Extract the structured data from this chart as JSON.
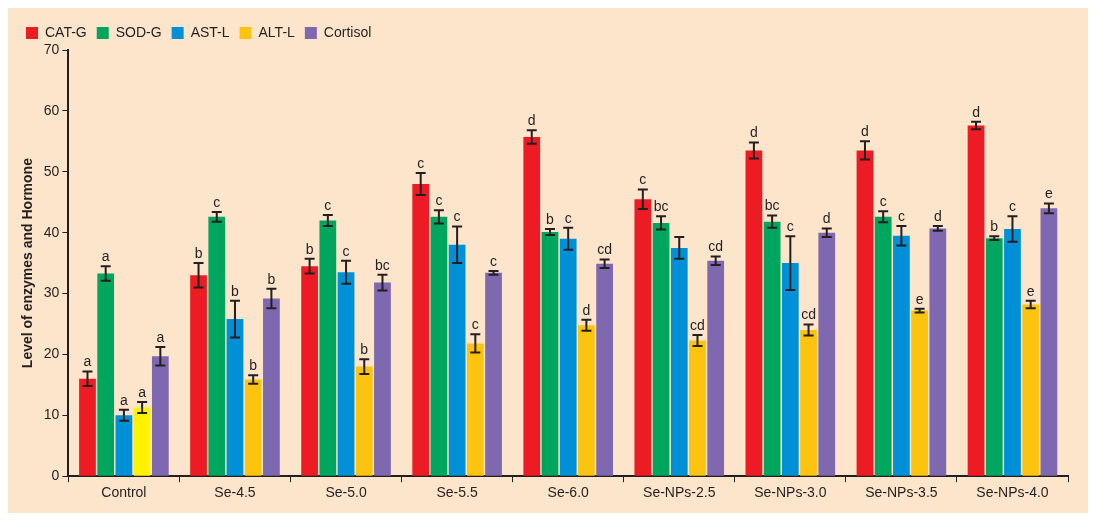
{
  "chart_data": {
    "type": "bar",
    "ylabel": "Level of enzymes and Hormone",
    "categories": [
      "Control",
      "Se-4.5",
      "Se-5.0",
      "Se-5.5",
      "Se-6.0",
      "Se-NPs-2.5",
      "Se-NPs-3.0",
      "Se-NPs-3.5",
      "Se-NPs-4.0"
    ],
    "series": [
      {
        "name": "CAT-G",
        "color": "#ed1c24",
        "values": [
          16,
          33,
          34.5,
          48,
          55.7,
          45.5,
          53.5,
          53.5,
          57.6
        ],
        "errors": [
          1.2,
          2,
          1.2,
          1.8,
          1.1,
          1.6,
          1.3,
          1.5,
          0.6
        ],
        "value_labels": [
          "a",
          "b",
          "b",
          "c",
          "d",
          "c",
          "d",
          "d",
          "d"
        ]
      },
      {
        "name": "SOD-G",
        "color": "#00a65d",
        "values": [
          33.3,
          42.6,
          42,
          42.6,
          40.1,
          41.6,
          41.8,
          42.6,
          39.1
        ],
        "errors": [
          1.2,
          0.8,
          0.9,
          1.1,
          0.5,
          1.1,
          1,
          0.9,
          0.3
        ],
        "value_labels": [
          "a",
          "c",
          "c",
          "c",
          "b",
          "bc",
          "bc",
          "c",
          "b"
        ]
      },
      {
        "name": "AST-L",
        "color": "#0090d8",
        "values": [
          10,
          25.8,
          33.5,
          38,
          39,
          37.5,
          35,
          39.5,
          40.6
        ],
        "errors": [
          0.9,
          3,
          1.9,
          3,
          1.8,
          1.8,
          4.4,
          1.6,
          2.1
        ],
        "value_labels": [
          "a",
          "b",
          "c",
          "c",
          "c",
          null,
          "c",
          "c",
          "c"
        ]
      },
      {
        "name": "ALT-L",
        "color": "#fcc30f",
        "colors": [
          "#fff200",
          "#fcc30f",
          "#fcc30f",
          "#fcc30f",
          "#fcc30f",
          "#fcc30f",
          "#fcc30f",
          "#fcc30f",
          "#fcc30f"
        ],
        "values": [
          11.3,
          15.9,
          18,
          21.8,
          24.8,
          22.3,
          24,
          27.2,
          28.2
        ],
        "errors": [
          0.9,
          0.7,
          1.2,
          1.5,
          0.9,
          0.9,
          0.9,
          0.3,
          0.6
        ],
        "value_labels": [
          "a",
          "b",
          "b",
          "c",
          "d",
          "cd",
          "cd",
          "e",
          "e"
        ]
      },
      {
        "name": "Cortisol",
        "color": "#7e68b0",
        "values": [
          19.7,
          29.2,
          31.8,
          33.4,
          34.9,
          35.4,
          40,
          40.7,
          44
        ],
        "errors": [
          1.5,
          1.6,
          1.3,
          0.3,
          0.7,
          0.7,
          0.7,
          0.4,
          0.8
        ],
        "value_labels": [
          "a",
          "b",
          "bc",
          "c",
          "cd",
          "cd",
          "d",
          "d",
          "e"
        ]
      }
    ],
    "ylim": [
      0,
      70
    ],
    "yticks": [
      0,
      10,
      20,
      30,
      40,
      50,
      60,
      70
    ],
    "grid": false,
    "legend": "top left"
  }
}
